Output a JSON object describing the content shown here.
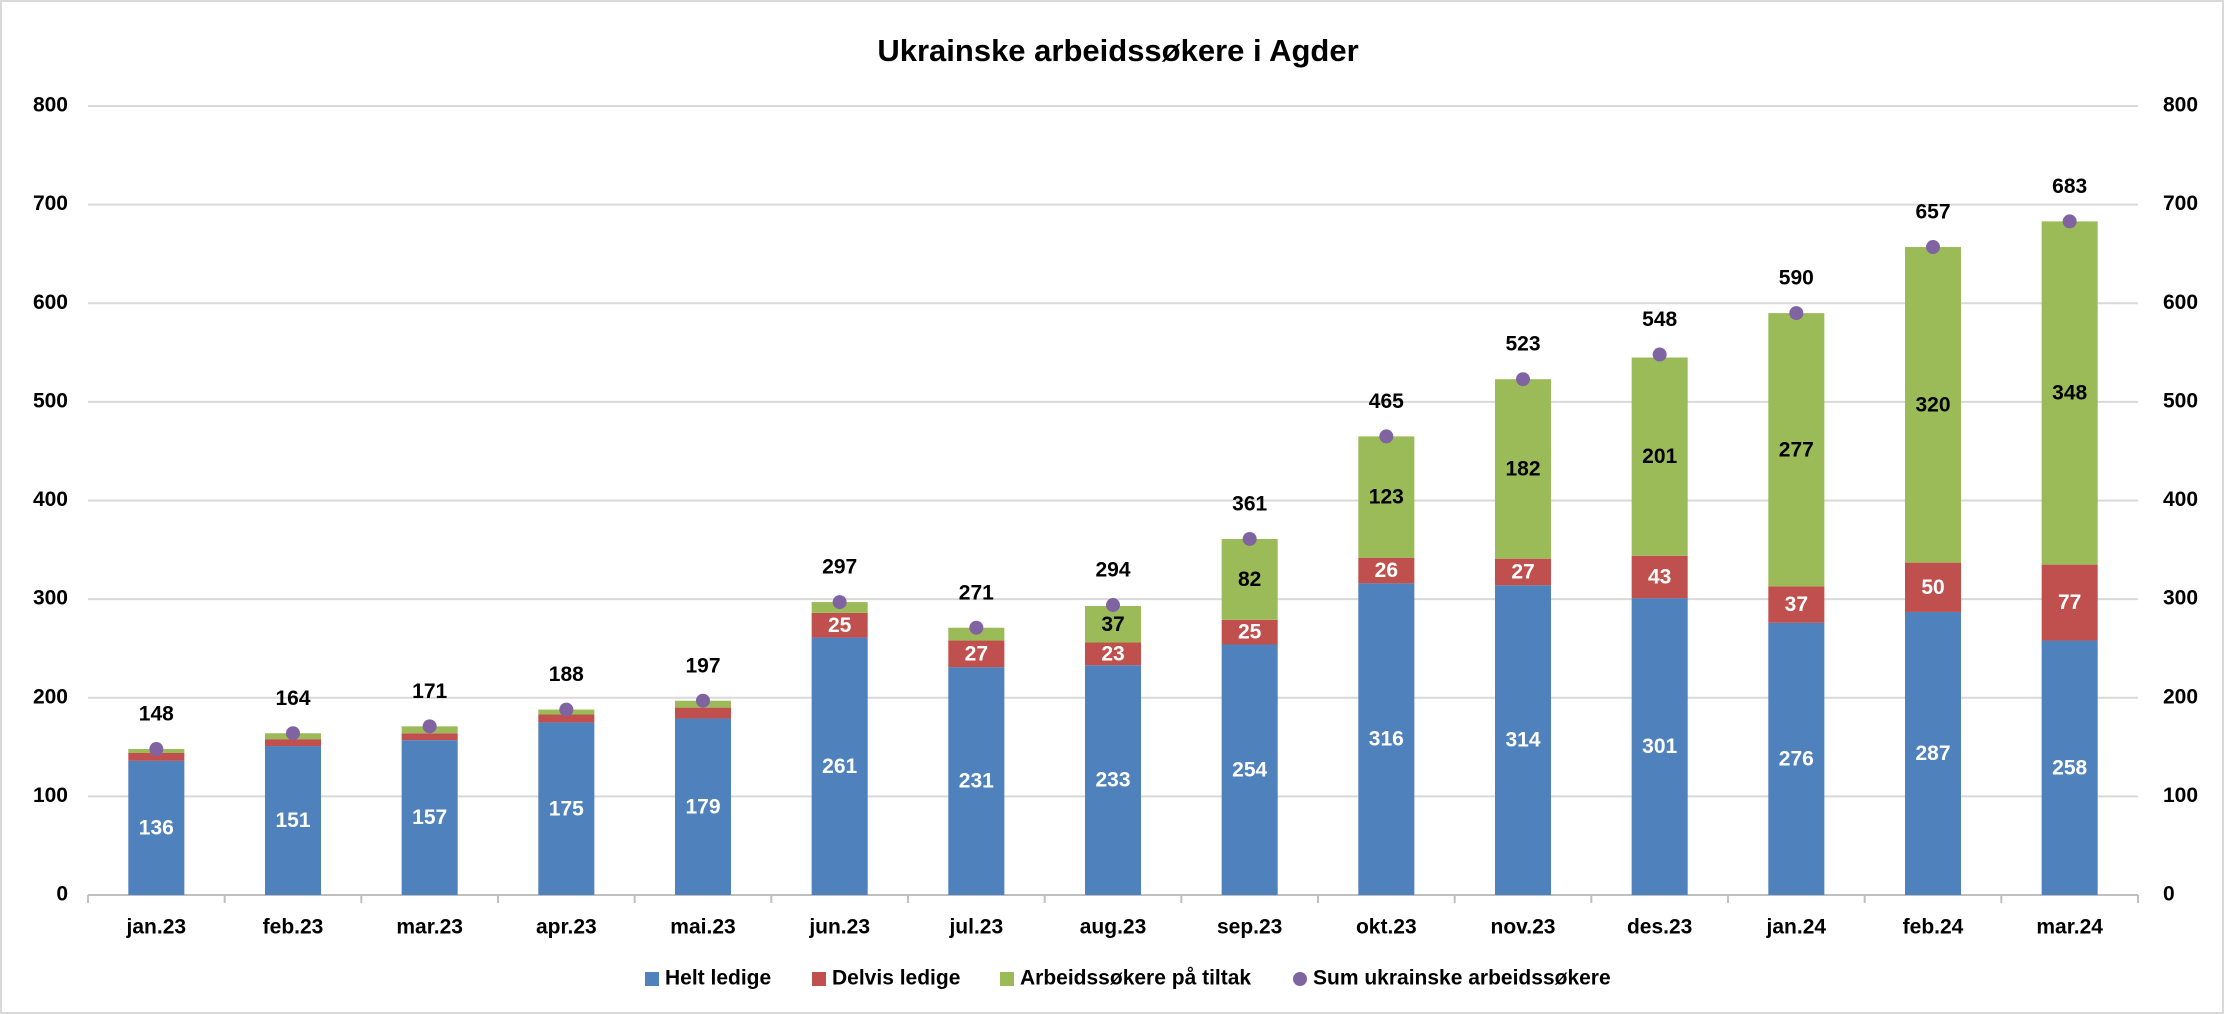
{
  "chart_data": {
    "type": "bar",
    "stacked": true,
    "title": "Ukrainske arbeidssøkere i Agder",
    "categories": [
      "jan.23",
      "feb.23",
      "mar.23",
      "apr.23",
      "mai.23",
      "jun.23",
      "jul.23",
      "aug.23",
      "sep.23",
      "okt.23",
      "nov.23",
      "des.23",
      "jan.24",
      "feb.24",
      "mar.24"
    ],
    "series": [
      {
        "name": "Helt ledige",
        "color": "#4f81bd",
        "label_color": "#ffffff",
        "values": [
          136,
          151,
          157,
          175,
          179,
          261,
          231,
          233,
          254,
          316,
          314,
          301,
          276,
          287,
          258
        ]
      },
      {
        "name": "Delvis ledige",
        "color": "#c0504d",
        "label_color": "#ffffff",
        "values": [
          8,
          7,
          7,
          8,
          11,
          25,
          27,
          23,
          25,
          26,
          27,
          43,
          37,
          50,
          77
        ],
        "value_labels": [
          null,
          null,
          null,
          null,
          null,
          "25",
          "27",
          "23",
          "25",
          "26",
          "27",
          "43",
          "37",
          "50",
          "77"
        ]
      },
      {
        "name": "Arbeidssøkere på tiltak",
        "color": "#9bbb59",
        "label_color": "#000000",
        "values": [
          4,
          6,
          7,
          5,
          7,
          11,
          13,
          37,
          82,
          123,
          182,
          201,
          277,
          320,
          348
        ],
        "value_labels": [
          null,
          null,
          null,
          null,
          null,
          null,
          null,
          "37",
          "82",
          "123",
          "182",
          "201",
          "277",
          "320",
          "348"
        ]
      },
      {
        "name": "Sum ukrainske arbeidssøkere",
        "color": "#8064a2",
        "label_color": "#000000",
        "type": "marker",
        "values": [
          148,
          164,
          171,
          188,
          197,
          297,
          271,
          294,
          361,
          465,
          523,
          548,
          590,
          657,
          683
        ]
      }
    ],
    "ylim": [
      0,
      800
    ],
    "yticks": [
      0,
      100,
      200,
      300,
      400,
      500,
      600,
      700,
      800
    ],
    "y2lim": [
      0,
      800
    ],
    "y2ticks": [
      0,
      100,
      200,
      300,
      400,
      500,
      600,
      700,
      800
    ],
    "grid": true,
    "legend": "bottom"
  }
}
